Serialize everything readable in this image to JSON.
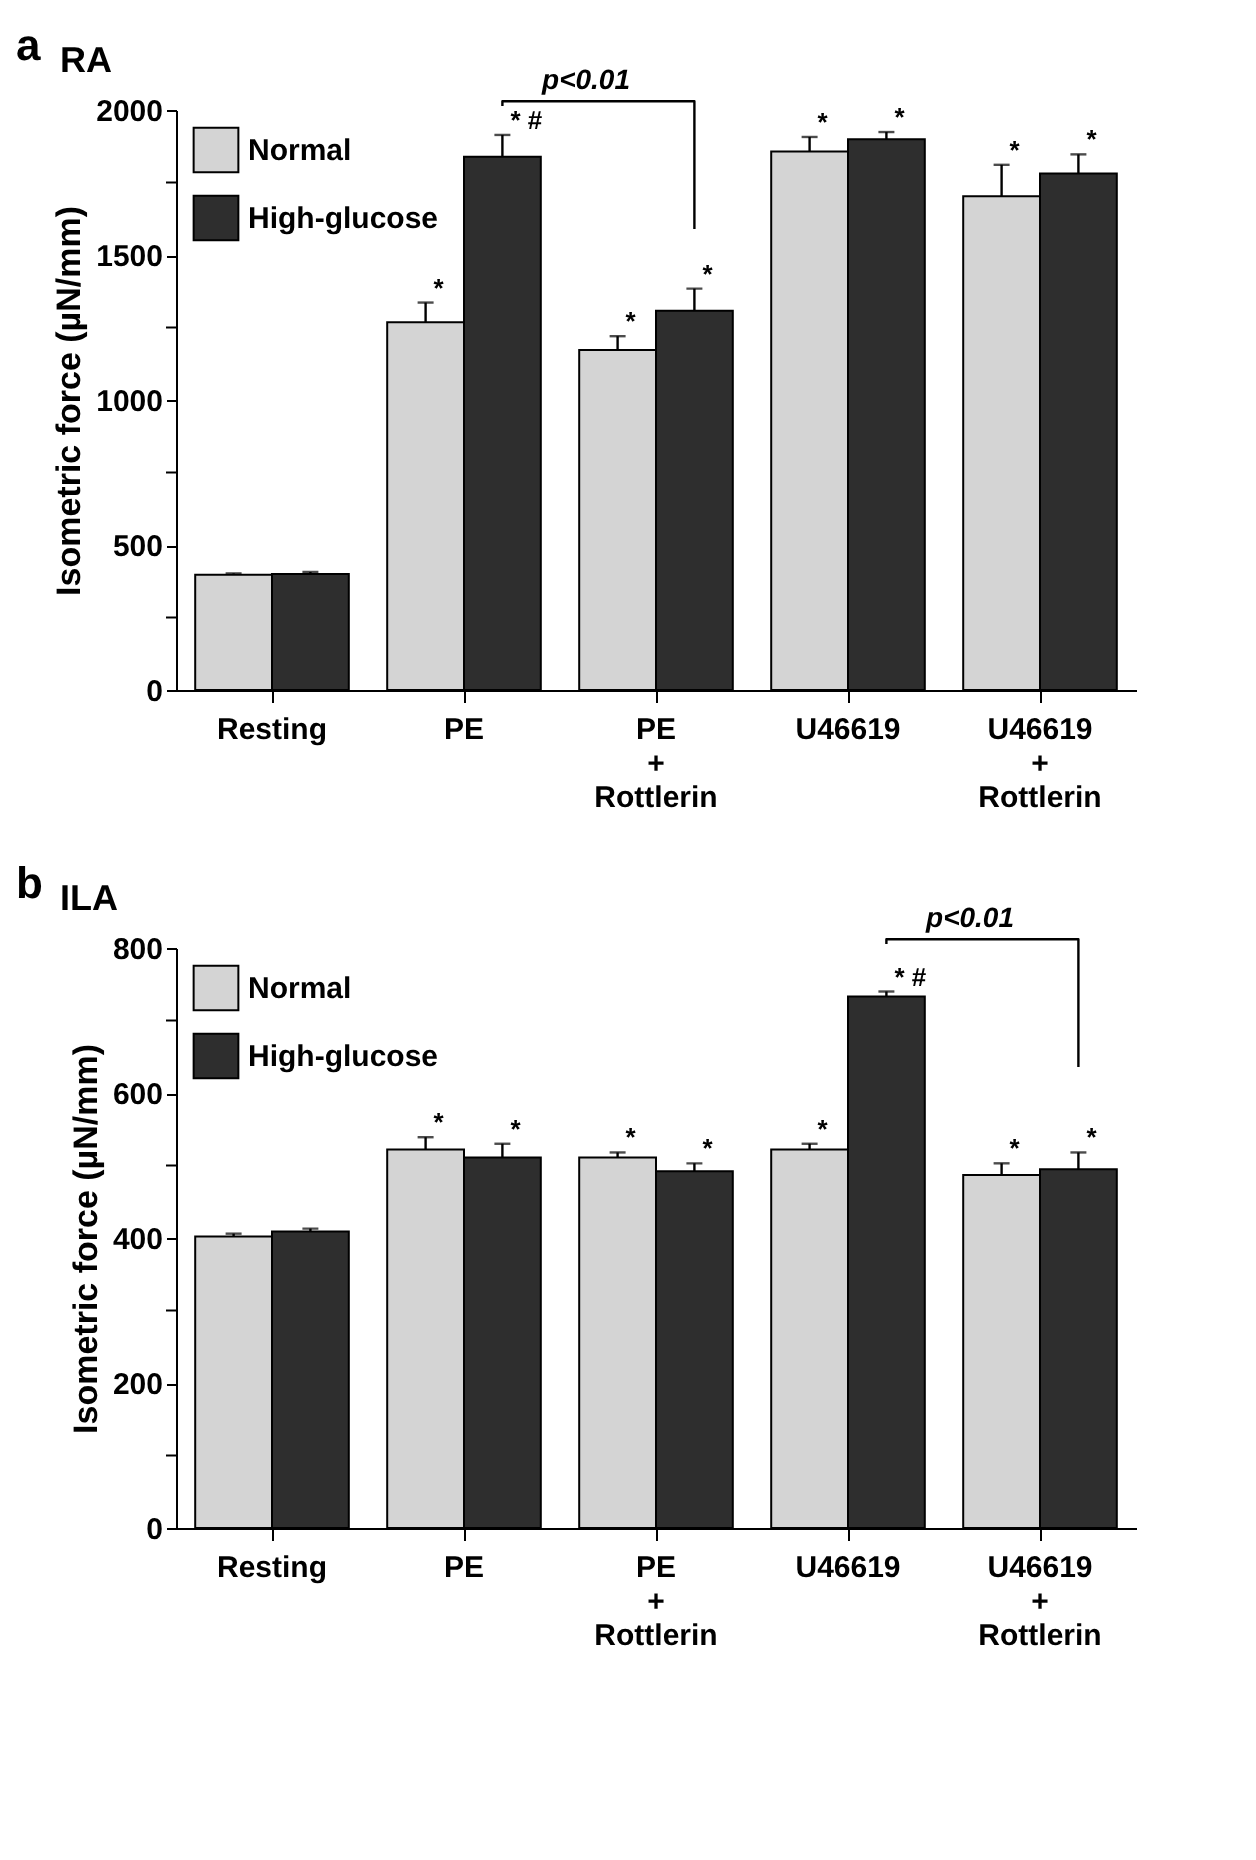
{
  "chart_data": [
    {
      "type": "bar",
      "title": "RA",
      "ylabel": "Isometric force (µN/mm)",
      "categories": [
        "Resting",
        "PE",
        "PE\n+\nRottlerin",
        "U46619",
        "U46619\n+\nRottlerin"
      ],
      "series": [
        {
          "name": "Normal",
          "color": "#d4d4d4",
          "values": [
            397,
            1268,
            1172,
            1857,
            1703
          ],
          "errors": [
            5,
            68,
            48,
            50,
            108
          ],
          "value_labels": [
            null,
            "*",
            "*",
            "*",
            "*"
          ]
        },
        {
          "name": "High-glucose",
          "color": "#2e2e2e",
          "values": [
            400,
            1839,
            1308,
            1899,
            1781
          ],
          "errors": [
            7,
            75,
            76,
            25,
            66
          ],
          "value_labels": [
            null,
            "* #",
            "*",
            "*",
            "*"
          ]
        }
      ],
      "ylim": [
        0,
        2000
      ],
      "yticks": [
        0,
        {
          "value": 250,
          "label": null
        },
        500,
        {
          "value": 750,
          "label": null
        },
        1000,
        {
          "value": 1250,
          "label": null
        },
        1500,
        {
          "value": 1750,
          "label": null
        },
        2000
      ],
      "annotations": [
        "a",
        "p<0.01"
      ],
      "legend": "top left",
      "grid": false
    },
    {
      "type": "bar",
      "title": "ILA",
      "ylabel": "Isometric force (µN/mm)",
      "categories": [
        "Resting",
        "PE",
        "PE\n+\nRottlerin",
        "U46619",
        "U46619\n+\nRottlerin"
      ],
      "series": [
        {
          "name": "Normal",
          "color": "#d4d4d4",
          "values": [
            402,
            522,
            511,
            522,
            487
          ],
          "errors": [
            4,
            17,
            7,
            8,
            16
          ],
          "value_labels": [
            null,
            "*",
            "*",
            "*",
            "*"
          ]
        },
        {
          "name": "High-glucose",
          "color": "#2e2e2e",
          "values": [
            409,
            511,
            492,
            733,
            495
          ],
          "errors": [
            4,
            19,
            11,
            7,
            23
          ],
          "value_labels": [
            null,
            "*",
            "*",
            "* #",
            "*"
          ]
        }
      ],
      "ylim": [
        0,
        800
      ],
      "yticks": [
        0,
        {
          "value": 100,
          "label": null
        },
        200,
        {
          "value": 300,
          "label": null
        },
        400,
        {
          "value": 500,
          "label": null
        },
        600,
        {
          "value": 700,
          "label": null
        },
        800
      ],
      "annotations": [
        "b",
        "p<0.01"
      ],
      "legend": "top left",
      "grid": false
    }
  ]
}
